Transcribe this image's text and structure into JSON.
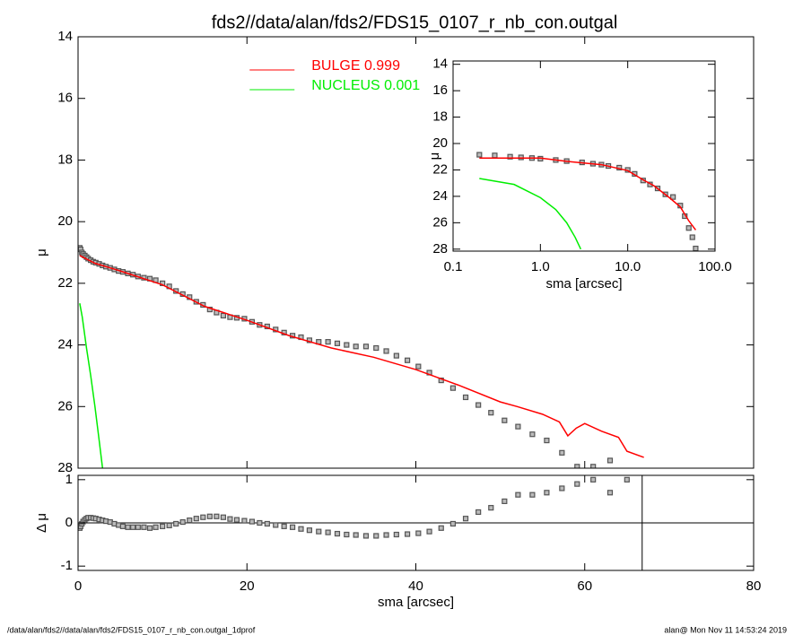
{
  "chart_data": [
    {
      "type": "line",
      "title": "fds2//data/alan/fds2/FDS15_0107_r_nb_con.outgal",
      "ylabel": "μ",
      "xlim": [
        0,
        80
      ],
      "ylim": [
        28,
        14
      ],
      "yticks": [
        14,
        16,
        18,
        20,
        22,
        24,
        26,
        28
      ],
      "legend": "top",
      "series": [
        {
          "style": "points",
          "color": "#555555",
          "x": [
            0.2,
            0.3,
            0.45,
            0.6,
            0.8,
            1,
            1.2,
            1.5,
            1.8,
            2.1,
            2.5,
            2.9,
            3.3,
            3.8,
            4.3,
            4.8,
            5.3,
            5.9,
            6.5,
            7.1,
            7.8,
            8.5,
            9.2,
            10,
            10.8,
            11.6,
            12.4,
            13.2,
            14,
            14.8,
            15.6,
            16.4,
            17.2,
            18,
            18.8,
            19.7,
            20.6,
            21.5,
            22.4,
            23.4,
            24.4,
            25.4,
            26.4,
            27.4,
            28.5,
            29.6,
            30.7,
            31.8,
            32.9,
            34.1,
            35.3,
            36.5,
            37.7,
            39,
            40.3,
            41.6,
            43,
            44.4,
            45.9,
            47.4,
            48.9,
            50.5,
            52.1,
            53.8,
            55.5,
            57.3,
            59.1,
            61,
            63
          ],
          "values": [
            20.85,
            20.9,
            21.0,
            21.05,
            21.1,
            21.15,
            21.2,
            21.25,
            21.3,
            21.33,
            21.37,
            21.42,
            21.46,
            21.5,
            21.55,
            21.6,
            21.63,
            21.68,
            21.72,
            21.78,
            21.82,
            21.85,
            21.9,
            22.0,
            22.1,
            22.25,
            22.35,
            22.45,
            22.6,
            22.7,
            22.85,
            22.95,
            23.05,
            23.1,
            23.12,
            23.15,
            23.25,
            23.35,
            23.4,
            23.5,
            23.6,
            23.7,
            23.75,
            23.85,
            23.9,
            23.9,
            23.95,
            24.0,
            24.05,
            24.05,
            24.1,
            24.2,
            24.35,
            24.5,
            24.7,
            24.9,
            25.15,
            25.4,
            25.7,
            25.95,
            26.2,
            26.45,
            26.65,
            26.9,
            27.1,
            27.5,
            27.95,
            27.95,
            27.75
          ]
        },
        {
          "name": "BULGE  0.999",
          "style": "line",
          "color": "#ff0000",
          "x": [
            0.2,
            2,
            5,
            10,
            15,
            20,
            25,
            30,
            35,
            40,
            45,
            50,
            52,
            55,
            57,
            58,
            59,
            60,
            62,
            64,
            65,
            67
          ],
          "values": [
            21.1,
            21.35,
            21.6,
            22.05,
            22.75,
            23.2,
            23.7,
            24.1,
            24.4,
            24.8,
            25.3,
            25.85,
            26.0,
            26.25,
            26.5,
            26.95,
            26.7,
            26.55,
            26.8,
            27.0,
            27.45,
            27.65
          ]
        },
        {
          "name": "NUCLEUS  0.001",
          "style": "line",
          "color": "#00ee00",
          "x": [
            0.2,
            0.5,
            1,
            1.5,
            2,
            2.5,
            2.9
          ],
          "values": [
            22.65,
            23.1,
            24.1,
            25.0,
            26.0,
            27.1,
            28.0
          ]
        }
      ]
    },
    {
      "type": "line",
      "xlabel": "sma [arcsec]",
      "ylabel": "Δ μ",
      "xlim": [
        0,
        80
      ],
      "xticks": [
        0,
        20,
        40,
        60,
        80
      ],
      "ylim": [
        -1.1,
        1.1
      ],
      "yticks": [
        -1,
        0,
        1
      ],
      "hline": 0,
      "vline": 66.8,
      "series": [
        {
          "style": "points",
          "color": "#555555",
          "x": [
            0.2,
            0.3,
            0.45,
            0.6,
            0.8,
            1,
            1.2,
            1.5,
            1.8,
            2.1,
            2.5,
            2.9,
            3.3,
            3.8,
            4.3,
            4.8,
            5.3,
            5.9,
            6.5,
            7.1,
            7.8,
            8.5,
            9.2,
            10,
            10.8,
            11.6,
            12.4,
            13.2,
            14,
            14.8,
            15.6,
            16.4,
            17.2,
            18,
            18.8,
            19.7,
            20.6,
            21.5,
            22.4,
            23.4,
            24.4,
            25.4,
            26.4,
            27.4,
            28.5,
            29.6,
            30.7,
            31.8,
            32.9,
            34.1,
            35.3,
            36.5,
            37.7,
            39,
            40.3,
            41.6,
            43,
            44.4,
            45.9,
            47.4,
            48.9,
            50.5,
            52.1,
            53.8,
            55.5,
            57.3,
            59.1,
            61,
            63,
            65
          ],
          "values": [
            -0.12,
            -0.08,
            -0.02,
            0.03,
            0.07,
            0.1,
            0.12,
            0.12,
            0.11,
            0.1,
            0.08,
            0.06,
            0.04,
            0.02,
            -0.02,
            -0.05,
            -0.08,
            -0.1,
            -0.1,
            -0.1,
            -0.1,
            -0.12,
            -0.1,
            -0.08,
            -0.06,
            -0.02,
            0.02,
            0.06,
            0.1,
            0.13,
            0.15,
            0.15,
            0.13,
            0.09,
            0.07,
            0.05,
            0.03,
            0.0,
            -0.02,
            -0.05,
            -0.08,
            -0.1,
            -0.14,
            -0.17,
            -0.2,
            -0.22,
            -0.25,
            -0.27,
            -0.28,
            -0.3,
            -0.3,
            -0.28,
            -0.27,
            -0.26,
            -0.24,
            -0.2,
            -0.12,
            -0.02,
            0.1,
            0.25,
            0.35,
            0.5,
            0.65,
            0.65,
            0.7,
            0.8,
            0.9,
            1.0,
            0.7,
            1.0
          ]
        }
      ]
    },
    {
      "type": "line",
      "xlabel": "sma [arcsec]",
      "ylabel": "μ",
      "xlog": true,
      "xlim": [
        0.1,
        100
      ],
      "xticks": [
        {
          "value": 0.1,
          "label": "0.1"
        },
        {
          "value": 1,
          "label": "1.0"
        },
        {
          "value": 10,
          "label": "10.0"
        },
        {
          "value": 100,
          "label": "100.0"
        }
      ],
      "ylim": [
        28.15,
        13.75
      ],
      "yticks": [
        14,
        16,
        18,
        20,
        22,
        24,
        26,
        28
      ],
      "series": [
        {
          "style": "points",
          "color": "#555555",
          "x": [
            0.2,
            0.3,
            0.45,
            0.6,
            0.8,
            1,
            1.5,
            2,
            3,
            4,
            5,
            6,
            8,
            10,
            12,
            15,
            18,
            22,
            27,
            33,
            40,
            45,
            50,
            55,
            60
          ],
          "values": [
            20.85,
            20.9,
            21.0,
            21.05,
            21.1,
            21.15,
            21.25,
            21.33,
            21.43,
            21.53,
            21.6,
            21.7,
            21.83,
            22.0,
            22.3,
            22.8,
            23.1,
            23.4,
            23.85,
            24.05,
            24.7,
            25.5,
            26.4,
            27.1,
            27.95
          ]
        },
        {
          "style": "line",
          "color": "#ff0000",
          "x": [
            0.2,
            1,
            2,
            5,
            10,
            15,
            20,
            30,
            40,
            50,
            60
          ],
          "values": [
            21.1,
            21.1,
            21.35,
            21.6,
            22.05,
            22.75,
            23.2,
            24.1,
            24.8,
            25.85,
            26.55
          ]
        },
        {
          "style": "line",
          "color": "#00ee00",
          "x": [
            0.2,
            0.5,
            1,
            1.5,
            2,
            2.5,
            2.9
          ],
          "values": [
            22.65,
            23.1,
            24.1,
            25.0,
            26.0,
            27.1,
            28.0
          ]
        }
      ]
    }
  ],
  "footer": {
    "left": "/data/alan/fds2//data/alan/fds2/FDS15_0107_r_nb_con.outgal_1dprof",
    "right": "alan@  Mon Nov 11 14:53:24 2019"
  }
}
